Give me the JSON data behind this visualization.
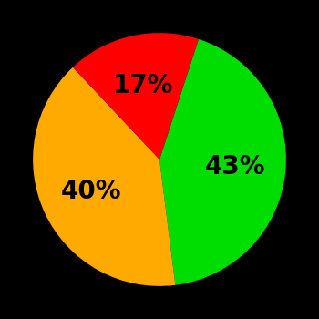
{
  "slices": [
    43,
    40,
    17
  ],
  "colors": [
    "#00dd00",
    "#ffaa00",
    "#ff0000"
  ],
  "labels": [
    "43%",
    "40%",
    "17%"
  ],
  "background_color": "#000000",
  "text_color": "#000000",
  "startangle": 72,
  "counterclock": false,
  "font_size": 20,
  "font_weight": "bold",
  "label_r": 0.6
}
